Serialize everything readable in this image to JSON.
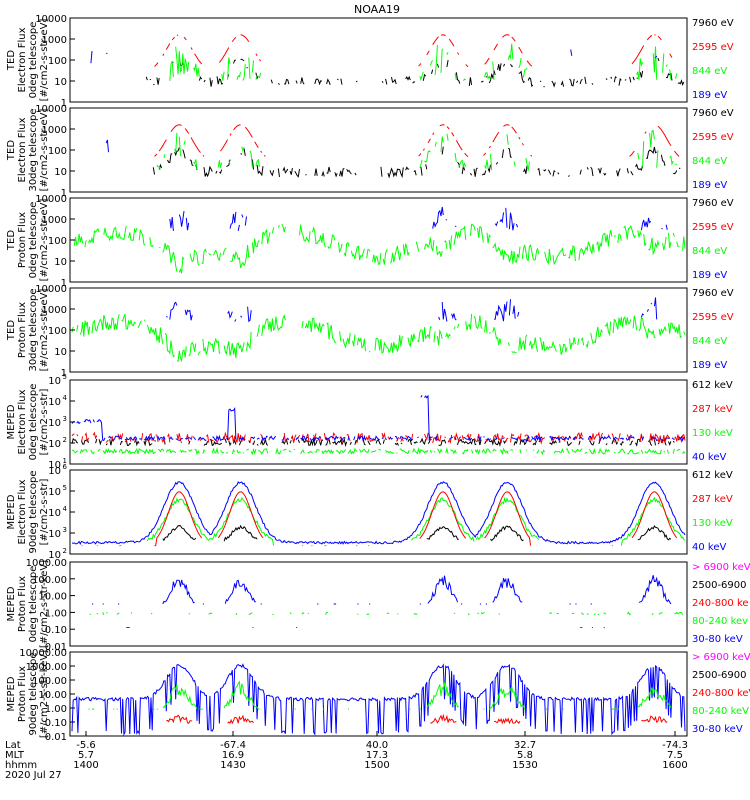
{
  "title": "NOAA19",
  "colors": {
    "black": "#000000",
    "red": "#ff0000",
    "green": "#00ff00",
    "blue": "#0000ff",
    "magenta": "#ff00ff"
  },
  "footer": {
    "rows": [
      {
        "label": "Lat",
        "values": [
          "-5.6",
          "-67.4",
          "40.0",
          "32.7",
          "-74.3"
        ]
      },
      {
        "label": "MLT",
        "values": [
          "5.7",
          "16.9",
          "17.3",
          "5.8",
          "7.5"
        ]
      },
      {
        "label": "hhmm",
        "values": [
          "1400",
          "1430",
          "1500",
          "1530",
          "1600"
        ]
      }
    ],
    "date": "2020 Jul 27"
  },
  "chart_data": [
    {
      "type": "line",
      "ylabel": [
        "TED",
        "Electron Flux",
        "0deg telescope",
        "[#/cm2-s-str-eV]"
      ],
      "yscale": "log",
      "yticks": [
        "1",
        "10",
        "100",
        "1000",
        "10000"
      ],
      "legend": [
        {
          "label": "7960 eV",
          "color": "#000000"
        },
        {
          "label": "2595 eV",
          "color": "#ff0000"
        },
        {
          "label": "844 eV",
          "color": "#00ff00"
        },
        {
          "label": "189 eV",
          "color": "#0000ff"
        }
      ]
    },
    {
      "type": "line",
      "ylabel": [
        "TED",
        "Electron Flux",
        "30deg telescope",
        "[#/cm2-s-str-eV]"
      ],
      "yscale": "log",
      "yticks": [
        "1",
        "10",
        "100",
        "1000",
        "10000"
      ],
      "legend": [
        {
          "label": "7960 eV",
          "color": "#000000"
        },
        {
          "label": "2595 eV",
          "color": "#ff0000"
        },
        {
          "label": "844 eV",
          "color": "#00ff00"
        },
        {
          "label": "189 eV",
          "color": "#0000ff"
        }
      ]
    },
    {
      "type": "line",
      "ylabel": [
        "TED",
        "Proton Flux",
        "0deg telescope",
        "[#/cm2-s-str-eV]"
      ],
      "yscale": "log",
      "yticks": [
        "1",
        "10",
        "100",
        "1000",
        "10000"
      ],
      "legend": [
        {
          "label": "7960 eV",
          "color": "#000000"
        },
        {
          "label": "2595 eV",
          "color": "#ff0000"
        },
        {
          "label": "844 eV",
          "color": "#00ff00"
        },
        {
          "label": "189 eV",
          "color": "#0000ff"
        }
      ]
    },
    {
      "type": "line",
      "ylabel": [
        "TED",
        "Proton Flux",
        "30deg telescope",
        "[#/cm2-s-str-eV]"
      ],
      "yscale": "log",
      "yticks": [
        "1",
        "10",
        "100",
        "1000",
        "10000"
      ],
      "legend": [
        {
          "label": "7960 eV",
          "color": "#000000"
        },
        {
          "label": "2595 eV",
          "color": "#ff0000"
        },
        {
          "label": "844 eV",
          "color": "#00ff00"
        },
        {
          "label": "189 eV",
          "color": "#0000ff"
        }
      ]
    },
    {
      "type": "line",
      "ylabel": [
        "MEPED",
        "Electron Flux",
        "0deg telescope",
        "[#/cm2-s-str]"
      ],
      "yscale": "log",
      "yticks": [
        "10",
        "10",
        "10",
        "10",
        "10"
      ],
      "ytick_exponents": [
        "1",
        "2",
        "3",
        "4",
        "5"
      ],
      "legend": [
        {
          "label": "612 keV",
          "color": "#000000"
        },
        {
          "label": "287 keV",
          "color": "#ff0000"
        },
        {
          "label": "130 keV",
          "color": "#00ff00"
        },
        {
          "label": "40 keV",
          "color": "#0000ff"
        }
      ]
    },
    {
      "type": "line",
      "ylabel": [
        "MEPED",
        "Electron Flux",
        "90deg telescope",
        "[#/cm2-s-str]"
      ],
      "yscale": "log",
      "yticks": [
        "10",
        "10",
        "10",
        "10",
        "10"
      ],
      "ytick_exponents": [
        "2",
        "3",
        "4",
        "5",
        "6"
      ],
      "legend": [
        {
          "label": "612 keV",
          "color": "#000000"
        },
        {
          "label": "287 keV",
          "color": "#ff0000"
        },
        {
          "label": "130 keV",
          "color": "#00ff00"
        },
        {
          "label": "40 keV",
          "color": "#0000ff"
        }
      ]
    },
    {
      "type": "line",
      "ylabel": [
        "MEPED",
        "Proton Flux",
        "0deg telescope",
        "[#/cm2-s-str-keV]"
      ],
      "yscale": "log",
      "yticks": [
        "0.01",
        "0.10",
        "1.00",
        "10.00",
        "100.00",
        "1000.00"
      ],
      "legend": [
        {
          "label": "> 6900 keV",
          "color": "#ff00ff"
        },
        {
          "label": "2500-6900",
          "color": "#000000"
        },
        {
          "label": "240-800 ke",
          "color": "#ff0000"
        },
        {
          "label": "80-240 kev",
          "color": "#00ff00"
        },
        {
          "label": "30-80 keV",
          "color": "#0000ff"
        }
      ]
    },
    {
      "type": "line",
      "ylabel": [
        "MEPED",
        "Proton Flux",
        "90deg telescope",
        "[#/cm2-s-str-keV]"
      ],
      "yscale": "log",
      "yticks": [
        "0.01",
        "0.10",
        "1.00",
        "10.00",
        "100.00",
        "1000.00",
        "10000.00"
      ],
      "legend": [
        {
          "label": "> 6900 keV",
          "color": "#ff00ff"
        },
        {
          "label": "2500-6900",
          "color": "#000000"
        },
        {
          "label": "240-800 keV",
          "color": "#ff0000"
        },
        {
          "label": "80-240 keV",
          "color": "#00ff00"
        },
        {
          "label": "30-80 keV",
          "color": "#0000ff"
        }
      ]
    }
  ]
}
